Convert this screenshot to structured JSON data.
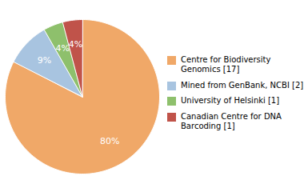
{
  "chart_data": {
    "type": "pie",
    "categories": [
      "Centre for Biodiversity\nGenomics [17]",
      "Mined from GenBank, NCBI [2]",
      "University of Helsinki [1]",
      "Canadian Centre for DNA\nBarcoding [1]"
    ],
    "values": [
      80,
      9,
      4,
      4
    ],
    "value_labels": [
      "80%",
      "9%",
      "4%",
      "4%"
    ],
    "colors": [
      "#f0a868",
      "#a8c4e0",
      "#8ec06c",
      "#c0534a"
    ],
    "data_labels": true,
    "legend": "right"
  }
}
